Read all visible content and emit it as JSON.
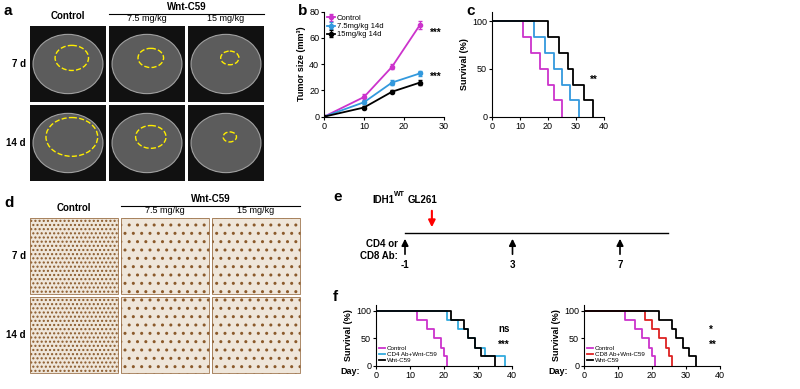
{
  "panel_labels": [
    "a",
    "b",
    "c",
    "d",
    "e",
    "f"
  ],
  "panel_a": {
    "group": "Wnt-C59",
    "columns": [
      "Control",
      "7.5 mg/kg",
      "15 mg/kg"
    ],
    "rows": [
      "7 d",
      "14 d"
    ]
  },
  "panel_d": {
    "group": "Wnt-C59",
    "columns": [
      "Control",
      "7.5 mg/kg",
      "15 mg/kg"
    ],
    "rows": [
      "7 d",
      "14 d"
    ]
  },
  "panel_e": {
    "cell_line": [
      "IDH1",
      "WT",
      "GL261"
    ],
    "treatment": "CD4 or\nCD8 Ab:",
    "tumor_day": 0,
    "treatment_days": [
      -1,
      3,
      7
    ]
  },
  "chart_data": [
    {
      "type": "line",
      "ylabel": "Tumor size (mm³)",
      "xlim": [
        0,
        30
      ],
      "xticks": [
        0,
        10,
        20,
        30
      ],
      "ylim": [
        0,
        80
      ],
      "yticks": [
        0,
        20,
        40,
        60,
        80
      ],
      "marker": "o",
      "legend": "upper left",
      "annotations": [
        "***",
        "***"
      ],
      "series": [
        {
          "name": "Control",
          "color": "#cc33cc",
          "x": [
            0,
            10,
            17,
            24
          ],
          "values": [
            0,
            15,
            38,
            70
          ],
          "errors": [
            0,
            2,
            2,
            3
          ]
        },
        {
          "name": "7.5mg/kg 14d",
          "color": "#3399dd",
          "x": [
            0,
            10,
            17,
            24
          ],
          "values": [
            0,
            11,
            26,
            33
          ],
          "errors": [
            0,
            1,
            2,
            2
          ]
        },
        {
          "name": "15mg/kg 14d",
          "color": "#000000",
          "x": [
            0,
            10,
            17,
            24
          ],
          "values": [
            0,
            7,
            19,
            26
          ],
          "errors": [
            0,
            1,
            1,
            2
          ]
        }
      ]
    },
    {
      "type": "step",
      "ylabel": "Survival (%)",
      "xlim": [
        0,
        40
      ],
      "xticks": [
        0,
        10,
        20,
        30,
        40
      ],
      "ylim": [
        0,
        110
      ],
      "yticks": [
        0,
        50,
        100
      ],
      "annotations": [
        "**"
      ],
      "series": [
        {
          "color": "#cc33cc",
          "x": [
            0,
            11,
            14,
            17,
            20,
            22,
            25
          ],
          "values": [
            100,
            83,
            67,
            50,
            33,
            17,
            0
          ]
        },
        {
          "color": "#3399dd",
          "x": [
            0,
            15,
            19,
            22,
            25,
            28,
            31
          ],
          "values": [
            100,
            83,
            67,
            50,
            33,
            17,
            0
          ]
        },
        {
          "color": "#000000",
          "x": [
            0,
            20,
            24,
            27,
            29,
            33,
            36
          ],
          "values": [
            100,
            83,
            67,
            50,
            33,
            17,
            0
          ]
        }
      ]
    },
    {
      "type": "step",
      "ylabel": "Survival (%)",
      "xlabel": "Day:",
      "xlim": [
        0,
        40
      ],
      "xticks": [
        0,
        10,
        20,
        30,
        40
      ],
      "ylim": [
        0,
        110
      ],
      "yticks": [
        0,
        50,
        100
      ],
      "legend": "lower left",
      "annotations": [
        "ns",
        "***"
      ],
      "series": [
        {
          "name": "Control",
          "color": "#cc33cc",
          "x": [
            0,
            12,
            15,
            17,
            19,
            20,
            21
          ],
          "values": [
            100,
            83,
            67,
            50,
            33,
            17,
            0
          ]
        },
        {
          "name": "CD4 Ab+Wnt-C59",
          "color": "#33aadd",
          "x": [
            0,
            21,
            24,
            27,
            29,
            32,
            38
          ],
          "values": [
            100,
            83,
            67,
            50,
            33,
            17,
            0
          ]
        },
        {
          "name": "Wnt-C59",
          "color": "#000000",
          "x": [
            0,
            22,
            26,
            27,
            29,
            31,
            35
          ],
          "values": [
            100,
            83,
            67,
            50,
            33,
            17,
            0
          ]
        }
      ]
    },
    {
      "type": "step",
      "ylabel": "Survival (%)",
      "xlabel": "Day:",
      "xlim": [
        0,
        40
      ],
      "xticks": [
        0,
        10,
        20,
        30,
        40
      ],
      "ylim": [
        0,
        110
      ],
      "yticks": [
        0,
        50,
        100
      ],
      "legend": "lower left",
      "annotations": [
        "*",
        "**"
      ],
      "series": [
        {
          "name": "Control",
          "color": "#cc33cc",
          "x": [
            0,
            12,
            15,
            17,
            19,
            20,
            21
          ],
          "values": [
            100,
            83,
            67,
            50,
            33,
            17,
            0
          ]
        },
        {
          "name": "CD8 Ab+Wnt-C59",
          "color": "#dd2222",
          "x": [
            0,
            18,
            20,
            22,
            24,
            25,
            26
          ],
          "values": [
            100,
            83,
            67,
            50,
            33,
            17,
            0
          ]
        },
        {
          "name": "Wnt-C59",
          "color": "#000000",
          "x": [
            0,
            22,
            26,
            27,
            29,
            31,
            33
          ],
          "values": [
            100,
            83,
            67,
            50,
            33,
            17,
            0
          ]
        }
      ]
    }
  ]
}
